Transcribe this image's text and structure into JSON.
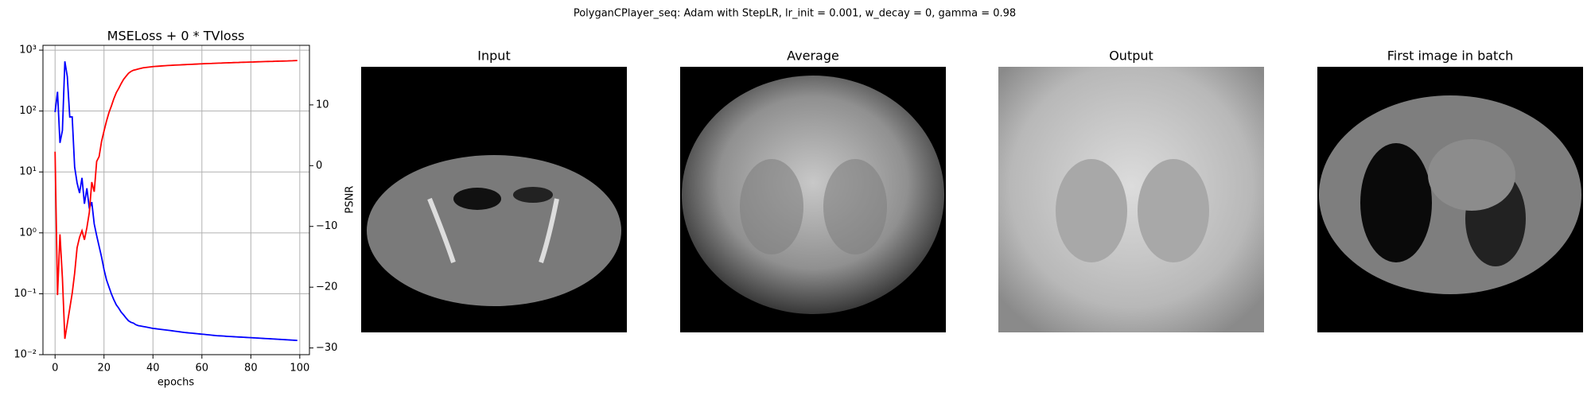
{
  "suptitle": "PolyganCPlayer_seq: Adam with StepLR, lr_init = 0.001, w_decay = 0, gamma = 0.98",
  "chart_data": {
    "type": "line",
    "title": "MSELoss + 0 * TVloss",
    "xlabel": "epochs",
    "y2label": "PSNR",
    "yscale": "log",
    "grid": true,
    "xlim": [
      -4.95,
      103.95
    ],
    "xticks": [
      0,
      20,
      40,
      60,
      80,
      100
    ],
    "ylim": [
      0.01,
      1200
    ],
    "yticks": [
      {
        "value": 0.01,
        "label": "10⁻²"
      },
      {
        "value": 0.1,
        "label": "10⁻¹"
      },
      {
        "value": 1,
        "label": "10⁰"
      },
      {
        "value": 10,
        "label": "10¹"
      },
      {
        "value": 100,
        "label": "10²"
      },
      {
        "value": 1000,
        "label": "10³"
      }
    ],
    "y2lim": [
      -31.1,
      19.8
    ],
    "y2ticks": [
      {
        "value": -30,
        "label": "−30"
      },
      {
        "value": -20,
        "label": "−20"
      },
      {
        "value": -10,
        "label": "−10"
      },
      0,
      10
    ],
    "x": [
      0,
      1,
      2,
      3,
      4,
      5,
      6,
      7,
      8,
      9,
      10,
      11,
      12,
      13,
      14,
      15,
      16,
      17,
      18,
      19,
      20,
      21,
      22,
      23,
      24,
      25,
      26,
      27,
      28,
      29,
      30,
      31,
      32,
      33,
      34,
      35,
      36,
      37,
      38,
      39,
      40,
      41,
      42,
      43,
      44,
      45,
      46,
      47,
      48,
      49,
      50,
      51,
      52,
      53,
      54,
      55,
      56,
      57,
      58,
      59,
      60,
      61,
      62,
      63,
      64,
      65,
      66,
      67,
      68,
      69,
      70,
      71,
      72,
      73,
      74,
      75,
      76,
      77,
      78,
      79,
      80,
      81,
      82,
      83,
      84,
      85,
      86,
      87,
      88,
      89,
      90,
      91,
      92,
      93,
      94,
      95,
      96,
      97,
      98,
      99
    ],
    "series": [
      {
        "color": "#0000ff",
        "values": [
          96,
          207,
          30,
          48,
          655,
          368,
          80,
          80,
          12,
          6.6,
          4.5,
          8,
          3,
          5.4,
          2.5,
          3.2,
          1.4,
          0.9,
          0.6,
          0.4,
          0.25,
          0.17,
          0.13,
          0.1,
          0.08,
          0.066,
          0.058,
          0.05,
          0.045,
          0.04,
          0.036,
          0.034,
          0.033,
          0.031,
          0.03,
          0.0295,
          0.029,
          0.0285,
          0.028,
          0.0275,
          0.027,
          0.0267,
          0.0264,
          0.0261,
          0.0258,
          0.0255,
          0.0252,
          0.0249,
          0.0246,
          0.0243,
          0.024,
          0.0237,
          0.0234,
          0.0231,
          0.0229,
          0.0227,
          0.0225,
          0.0223,
          0.0221,
          0.0219,
          0.0217,
          0.0215,
          0.0213,
          0.0211,
          0.0209,
          0.0207,
          0.0205,
          0.0204,
          0.0203,
          0.0202,
          0.02,
          0.0199,
          0.0198,
          0.0197,
          0.0196,
          0.0195,
          0.0194,
          0.0193,
          0.0192,
          0.0191,
          0.019,
          0.0189,
          0.0188,
          0.0187,
          0.0186,
          0.0185,
          0.0184,
          0.0183,
          0.0182,
          0.0181,
          0.018,
          0.0179,
          0.0178,
          0.0177,
          0.0176,
          0.0175,
          0.0174,
          0.0173,
          0.0172,
          0.0171
        ]
      },
      {
        "color": "#ff0000",
        "axis": "y2",
        "values": [
          2.3,
          -21.3,
          -11.3,
          -18.5,
          -28.5,
          -26,
          -23.5,
          -21,
          -17.7,
          -13.5,
          -11.8,
          -10.7,
          -12.2,
          -10.2,
          -7.7,
          -2.7,
          -4.3,
          0.7,
          1.5,
          4,
          5.7,
          7.3,
          8.7,
          9.8,
          11,
          12,
          12.7,
          13.5,
          14.2,
          14.7,
          15.2,
          15.5,
          15.7,
          15.8,
          15.9,
          16,
          16.1,
          16.15,
          16.2,
          16.25,
          16.3,
          16.33,
          16.36,
          16.39,
          16.42,
          16.45,
          16.48,
          16.5,
          16.52,
          16.54,
          16.56,
          16.58,
          16.6,
          16.62,
          16.64,
          16.66,
          16.68,
          16.7,
          16.72,
          16.74,
          16.76,
          16.78,
          16.8,
          16.81,
          16.82,
          16.84,
          16.86,
          16.87,
          16.88,
          16.9,
          16.92,
          16.93,
          16.94,
          16.96,
          16.97,
          16.98,
          17,
          17.01,
          17.02,
          17.04,
          17.05,
          17.06,
          17.08,
          17.09,
          17.1,
          17.12,
          17.13,
          17.14,
          17.15,
          17.16,
          17.18,
          17.19,
          17.2,
          17.21,
          17.22,
          17.23,
          17.25,
          17.26,
          17.28,
          17.3
        ]
      }
    ]
  },
  "images": [
    {
      "title": "Input"
    },
    {
      "title": "Average"
    },
    {
      "title": "Output"
    },
    {
      "title": "First image in batch"
    }
  ]
}
